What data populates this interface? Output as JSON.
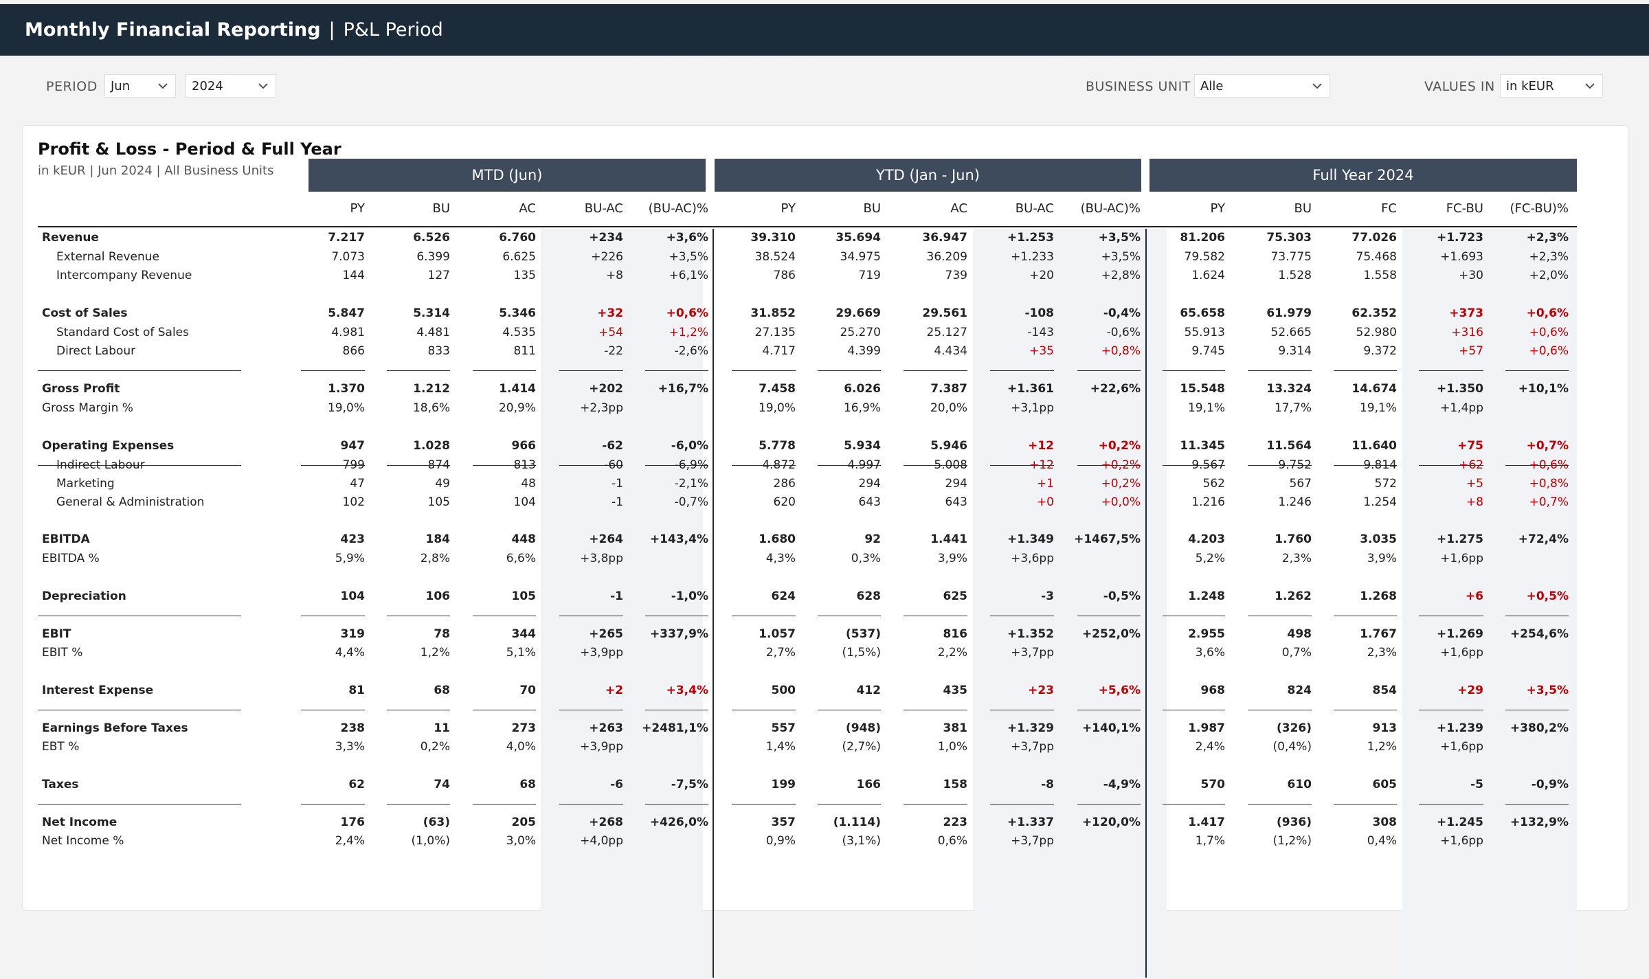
{
  "header": {
    "title": "Monthly Financial Reporting",
    "separator": "|",
    "subtitle": "P&L Period"
  },
  "filters": {
    "period_label": "PERIOD",
    "month": "Jun",
    "year": "2024",
    "business_unit_label": "BUSINESS UNIT",
    "business_unit": "Alle",
    "values_in_label": "VALUES IN",
    "values_in": "in kEUR"
  },
  "card": {
    "title": "Profit & Loss - Period & Full Year",
    "subtitle": "in kEUR | Jun 2024 | All Business Units"
  },
  "groups": [
    "MTD (Jun)",
    "YTD (Jan - Jun)",
    "Full Year 2024"
  ],
  "columns": [
    "PY",
    "BU",
    "AC",
    "BU-AC",
    "(BU-AC)%",
    "PY",
    "BU",
    "AC",
    "BU-AC",
    "(BU-AC)%",
    "PY",
    "BU",
    "FC",
    "FC-BU",
    "(FC-BU)%"
  ],
  "rows": [
    {
      "label": "Revenue",
      "bold": true,
      "indent": false,
      "v": [
        "7.217",
        "6.526",
        "6.760",
        "+234",
        "+3,6%",
        "39.310",
        "35.694",
        "36.947",
        "+1.253",
        "+3,5%",
        "81.206",
        "75.303",
        "77.026",
        "+1.723",
        "+2,3%"
      ],
      "red": []
    },
    {
      "label": "External Revenue",
      "bold": false,
      "indent": true,
      "v": [
        "7.073",
        "6.399",
        "6.625",
        "+226",
        "+3,5%",
        "38.524",
        "34.975",
        "36.209",
        "+1.233",
        "+3,5%",
        "79.582",
        "73.775",
        "75.468",
        "+1.693",
        "+2,3%"
      ],
      "red": []
    },
    {
      "label": "Intercompany Revenue",
      "bold": false,
      "indent": true,
      "v": [
        "144",
        "127",
        "135",
        "+8",
        "+6,1%",
        "786",
        "719",
        "739",
        "+20",
        "+2,8%",
        "1.624",
        "1.528",
        "1.558",
        "+30",
        "+2,0%"
      ],
      "red": []
    },
    {
      "label": "Cost of Sales",
      "bold": true,
      "indent": false,
      "v": [
        "5.847",
        "5.314",
        "5.346",
        "+32",
        "+0,6%",
        "31.852",
        "29.669",
        "29.561",
        "-108",
        "-0,4%",
        "65.658",
        "61.979",
        "62.352",
        "+373",
        "+0,6%"
      ],
      "red": [
        3,
        4,
        13,
        14
      ]
    },
    {
      "label": "Standard Cost of Sales",
      "bold": false,
      "indent": true,
      "v": [
        "4.981",
        "4.481",
        "4.535",
        "+54",
        "+1,2%",
        "27.135",
        "25.270",
        "25.127",
        "-143",
        "-0,6%",
        "55.913",
        "52.665",
        "52.980",
        "+316",
        "+0,6%"
      ],
      "red": [
        3,
        4,
        13,
        14
      ]
    },
    {
      "label": "Direct Labour",
      "bold": false,
      "indent": true,
      "v": [
        "866",
        "833",
        "811",
        "-22",
        "-2,6%",
        "4.717",
        "4.399",
        "4.434",
        "+35",
        "+0,8%",
        "9.745",
        "9.314",
        "9.372",
        "+57",
        "+0,6%"
      ],
      "red": [
        8,
        9,
        13,
        14
      ]
    },
    {
      "label": "Gross Profit",
      "bold": true,
      "indent": false,
      "v": [
        "1.370",
        "1.212",
        "1.414",
        "+202",
        "+16,7%",
        "7.458",
        "6.026",
        "7.387",
        "+1.361",
        "+22,6%",
        "15.548",
        "13.324",
        "14.674",
        "+1.350",
        "+10,1%"
      ],
      "red": []
    },
    {
      "label": "Gross Margin %",
      "bold": false,
      "indent": false,
      "v": [
        "19,0%",
        "18,6%",
        "20,9%",
        "+2,3pp",
        "",
        "19,0%",
        "16,9%",
        "20,0%",
        "+3,1pp",
        "",
        "19,1%",
        "17,7%",
        "19,1%",
        "+1,4pp",
        ""
      ],
      "red": []
    },
    {
      "label": "Operating Expenses",
      "bold": true,
      "indent": false,
      "v": [
        "947",
        "1.028",
        "966",
        "-62",
        "-6,0%",
        "5.778",
        "5.934",
        "5.946",
        "+12",
        "+0,2%",
        "11.345",
        "11.564",
        "11.640",
        "+75",
        "+0,7%"
      ],
      "red": [
        8,
        9,
        13,
        14
      ]
    },
    {
      "label": "Indirect Labour",
      "bold": false,
      "indent": true,
      "v": [
        "799",
        "874",
        "813",
        "-60",
        "-6,9%",
        "4.872",
        "4.997",
        "5.008",
        "+12",
        "+0,2%",
        "9.567",
        "9.752",
        "9.814",
        "+62",
        "+0,6%"
      ],
      "red": [
        8,
        9,
        13,
        14
      ]
    },
    {
      "label": "Marketing",
      "bold": false,
      "indent": true,
      "v": [
        "47",
        "49",
        "48",
        "-1",
        "-2,1%",
        "286",
        "294",
        "294",
        "+1",
        "+0,2%",
        "562",
        "567",
        "572",
        "+5",
        "+0,8%"
      ],
      "red": [
        8,
        9,
        13,
        14
      ]
    },
    {
      "label": "General & Administration",
      "bold": false,
      "indent": true,
      "v": [
        "102",
        "105",
        "104",
        "-1",
        "-0,7%",
        "620",
        "643",
        "643",
        "+0",
        "+0,0%",
        "1.216",
        "1.246",
        "1.254",
        "+8",
        "+0,7%"
      ],
      "red": [
        8,
        9,
        13,
        14
      ]
    },
    {
      "label": "EBITDA",
      "bold": true,
      "indent": false,
      "v": [
        "423",
        "184",
        "448",
        "+264",
        "+143,4%",
        "1.680",
        "92",
        "1.441",
        "+1.349",
        "+1467,5%",
        "4.203",
        "1.760",
        "3.035",
        "+1.275",
        "+72,4%"
      ],
      "red": []
    },
    {
      "label": "EBITDA %",
      "bold": false,
      "indent": false,
      "v": [
        "5,9%",
        "2,8%",
        "6,6%",
        "+3,8pp",
        "",
        "4,3%",
        "0,3%",
        "3,9%",
        "+3,6pp",
        "",
        "5,2%",
        "2,3%",
        "3,9%",
        "+1,6pp",
        ""
      ],
      "red": []
    },
    {
      "label": "Depreciation",
      "bold": true,
      "indent": false,
      "v": [
        "104",
        "106",
        "105",
        "-1",
        "-1,0%",
        "624",
        "628",
        "625",
        "-3",
        "-0,5%",
        "1.248",
        "1.262",
        "1.268",
        "+6",
        "+0,5%"
      ],
      "red": [
        13,
        14
      ]
    },
    {
      "label": "EBIT",
      "bold": true,
      "indent": false,
      "v": [
        "319",
        "78",
        "344",
        "+265",
        "+337,9%",
        "1.057",
        "(537)",
        "816",
        "+1.352",
        "+252,0%",
        "2.955",
        "498",
        "1.767",
        "+1.269",
        "+254,6%"
      ],
      "red": []
    },
    {
      "label": "EBIT %",
      "bold": false,
      "indent": false,
      "v": [
        "4,4%",
        "1,2%",
        "5,1%",
        "+3,9pp",
        "",
        "2,7%",
        "(1,5%)",
        "2,2%",
        "+3,7pp",
        "",
        "3,6%",
        "0,7%",
        "2,3%",
        "+1,6pp",
        ""
      ],
      "red": []
    },
    {
      "label": "Interest Expense",
      "bold": true,
      "indent": false,
      "v": [
        "81",
        "68",
        "70",
        "+2",
        "+3,4%",
        "500",
        "412",
        "435",
        "+23",
        "+5,6%",
        "968",
        "824",
        "854",
        "+29",
        "+3,5%"
      ],
      "red": [
        3,
        4,
        8,
        9,
        13,
        14
      ]
    },
    {
      "label": "Earnings Before Taxes",
      "bold": true,
      "indent": false,
      "v": [
        "238",
        "11",
        "273",
        "+263",
        "+2481,1%",
        "557",
        "(948)",
        "381",
        "+1.329",
        "+140,1%",
        "1.987",
        "(326)",
        "913",
        "+1.239",
        "+380,2%"
      ],
      "red": []
    },
    {
      "label": "EBT %",
      "bold": false,
      "indent": false,
      "v": [
        "3,3%",
        "0,2%",
        "4,0%",
        "+3,9pp",
        "",
        "1,4%",
        "(2,7%)",
        "1,0%",
        "+3,7pp",
        "",
        "2,4%",
        "(0,4%)",
        "1,2%",
        "+1,6pp",
        ""
      ],
      "red": []
    },
    {
      "label": "Taxes",
      "bold": true,
      "indent": false,
      "v": [
        "62",
        "74",
        "68",
        "-6",
        "-7,5%",
        "199",
        "166",
        "158",
        "-8",
        "-4,9%",
        "570",
        "610",
        "605",
        "-5",
        "-0,9%"
      ],
      "red": []
    },
    {
      "label": "Net Income",
      "bold": true,
      "indent": false,
      "v": [
        "176",
        "(63)",
        "205",
        "+268",
        "+426,0%",
        "357",
        "(1.114)",
        "223",
        "+1.337",
        "+120,0%",
        "1.417",
        "(936)",
        "308",
        "+1.245",
        "+132,9%"
      ],
      "red": []
    },
    {
      "label": "Net Income %",
      "bold": false,
      "indent": false,
      "v": [
        "2,4%",
        "(1,0%)",
        "3,0%",
        "+4,0pp",
        "",
        "0,9%",
        "(3,1%)",
        "0,6%",
        "+3,7pp",
        "",
        "1,7%",
        "(1,2%)",
        "0,4%",
        "+1,6pp",
        ""
      ],
      "red": []
    }
  ]
}
